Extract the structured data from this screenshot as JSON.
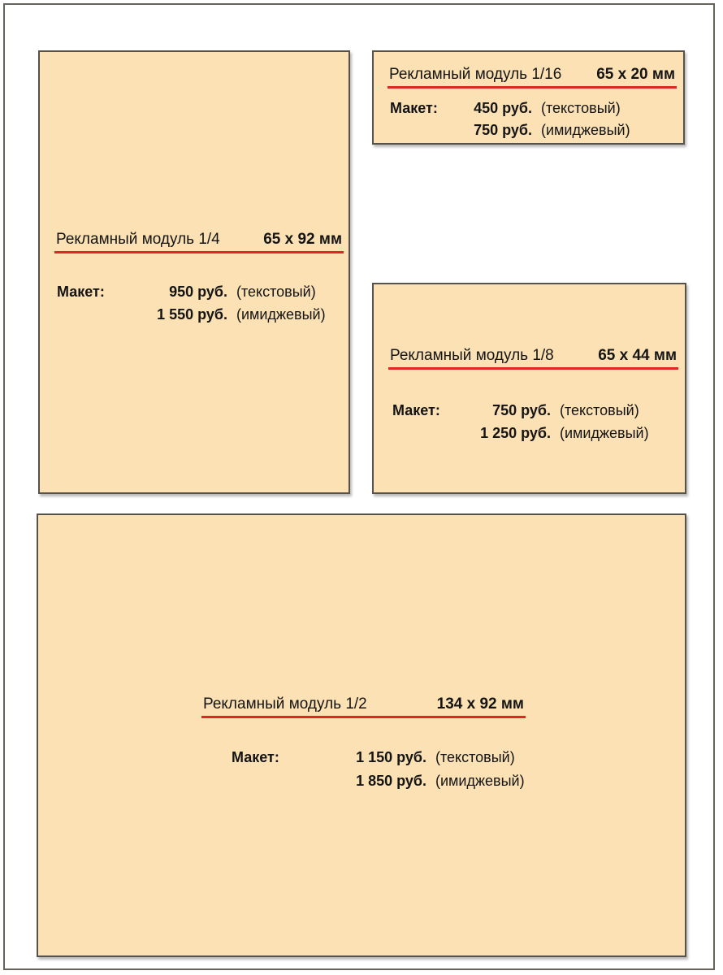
{
  "colors": {
    "page_bg": "#ffffff",
    "frame_border": "#66635d",
    "box_bg": "#fbe1b3",
    "box_border": "#56524a",
    "underline": "#df2722",
    "text": "#141414"
  },
  "modules": [
    {
      "title": "Рекламный модуль 1/4",
      "size": "65 x 92 мм",
      "label": "Макет:",
      "rows": [
        {
          "price": "950 руб.",
          "type": "(текстовый)"
        },
        {
          "price": "1 550 руб.",
          "type": "(имиджевый)"
        }
      ]
    },
    {
      "title": "Рекламный модуль 1/16",
      "size": "65 x 20 мм",
      "label": "Макет:",
      "rows": [
        {
          "price": "450 руб.",
          "type": "(текстовый)"
        },
        {
          "price": "750 руб.",
          "type": "(имиджевый)"
        }
      ]
    },
    {
      "title": "Рекламный модуль 1/8",
      "size": "65 x 44 мм",
      "label": "Макет:",
      "rows": [
        {
          "price": "750 руб.",
          "type": "(текстовый)"
        },
        {
          "price": "1 250 руб.",
          "type": "(имиджевый)"
        }
      ]
    },
    {
      "title": "Рекламный модуль 1/2",
      "size": "134 x 92 мм",
      "label": "Макет:",
      "rows": [
        {
          "price": "1 150 руб.",
          "type": "(текстовый)"
        },
        {
          "price": "1 850 руб.",
          "type": "(имиджевый)"
        }
      ]
    }
  ]
}
